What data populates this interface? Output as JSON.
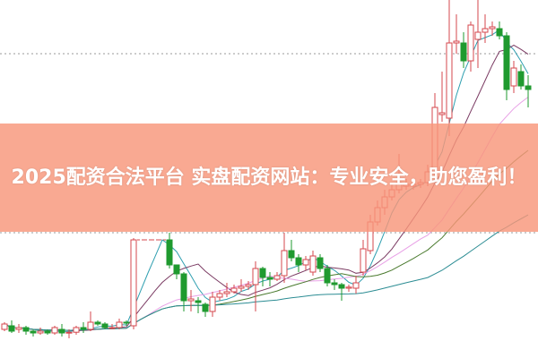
{
  "banner": {
    "text": "2025配资合法平台 实盘配资网站：专业安全，助您盈利！"
  },
  "colors": {
    "up": "#d6474d",
    "down": "#1f9a2f",
    "ma5": "#2f9fb0",
    "ma10": "#7b3b63",
    "ma20": "#e8a0e6",
    "ma30": "#4a7a2e",
    "ma60": "#2b8c93",
    "grid": "#9a9a9a",
    "banner": "#f8967a"
  },
  "chart_data": {
    "type": "candlestick",
    "title": "",
    "xlabel": "",
    "ylabel": "",
    "ylim": [
      0,
      100
    ],
    "grid": true,
    "gridlines": [
      35,
      85
    ],
    "moving_averages": [
      5,
      10,
      20,
      30,
      60
    ],
    "candles": [
      [
        8,
        9.5,
        10,
        7.5
      ],
      [
        9,
        7.5,
        10.5,
        7
      ],
      [
        8,
        8.5,
        9.5,
        7
      ],
      [
        8.5,
        7.5,
        9,
        6.5
      ],
      [
        7.5,
        7,
        8,
        6
      ],
      [
        7,
        7.5,
        8.5,
        6.5
      ],
      [
        7.5,
        7,
        8,
        6.5
      ],
      [
        7,
        8.5,
        9,
        6.5
      ],
      [
        8,
        7,
        9.5,
        6
      ],
      [
        7,
        7.2,
        8,
        5.5
      ],
      [
        7.2,
        8.5,
        9,
        6.5
      ],
      [
        8.5,
        8,
        10,
        7
      ],
      [
        8,
        10,
        13,
        7.5
      ],
      [
        10,
        9.5,
        10.5,
        9
      ],
      [
        9.5,
        8.5,
        10,
        8
      ],
      [
        8.5,
        8.5,
        9.5,
        8
      ],
      [
        8.5,
        10,
        11,
        8
      ],
      [
        10,
        9.8,
        10.5,
        9
      ],
      [
        9,
        33,
        33.5,
        8
      ],
      [
        33,
        33,
        33,
        33
      ],
      [
        33,
        33,
        33,
        33
      ],
      [
        33,
        33,
        33,
        33
      ],
      [
        33,
        33,
        33,
        33
      ],
      [
        33,
        26,
        35,
        25
      ],
      [
        26,
        23.5,
        25.5,
        22
      ],
      [
        23.5,
        16,
        24,
        13
      ],
      [
        16,
        16.5,
        19,
        13
      ],
      [
        16,
        15.5,
        17,
        12.5
      ],
      [
        15,
        13,
        15.5,
        11.5
      ],
      [
        13,
        17,
        18.5,
        11.5
      ],
      [
        17,
        18,
        19,
        16
      ],
      [
        18,
        18.5,
        21,
        17
      ],
      [
        18.5,
        19.5,
        20.5,
        18
      ],
      [
        19.5,
        20,
        22,
        18.5
      ],
      [
        20,
        20.5,
        21.5,
        19
      ],
      [
        20.5,
        25,
        27,
        13
      ],
      [
        25,
        22.5,
        25.5,
        20
      ],
      [
        22.5,
        22,
        24,
        20
      ],
      [
        22,
        23,
        24,
        21.5
      ],
      [
        23,
        30,
        35,
        21
      ],
      [
        30,
        28,
        33,
        27
      ],
      [
        28,
        26,
        29,
        24
      ],
      [
        26,
        27.5,
        28.5,
        24.5
      ],
      [
        24,
        28.5,
        30,
        23
      ],
      [
        28,
        25,
        29,
        24
      ],
      [
        25,
        21,
        26,
        20
      ],
      [
        21,
        20.5,
        22,
        19
      ],
      [
        20.5,
        19.5,
        21,
        16
      ],
      [
        19.5,
        19.8,
        20.5,
        18.5
      ],
      [
        19.5,
        21,
        23,
        18
      ],
      [
        24,
        30.5,
        33,
        23
      ],
      [
        30,
        38,
        40,
        29
      ],
      [
        38,
        42,
        44,
        37
      ],
      [
        42,
        45,
        47,
        40
      ],
      [
        45,
        47,
        49,
        44
      ],
      [
        47,
        49,
        57,
        46
      ],
      [
        48,
        48.5,
        50,
        47
      ],
      [
        48,
        48.5,
        49.5,
        47
      ],
      [
        48.5,
        49,
        50,
        47.5
      ],
      [
        49,
        52,
        54,
        48
      ],
      [
        52,
        70,
        74,
        51
      ],
      [
        68,
        68.5,
        80,
        66
      ],
      [
        67,
        88,
        100,
        62
      ],
      [
        88,
        88.5,
        96,
        85
      ],
      [
        88,
        83,
        91,
        81
      ],
      [
        83,
        93,
        94,
        80
      ],
      [
        89,
        91,
        100,
        81
      ],
      [
        91,
        92,
        96,
        88
      ],
      [
        92,
        92.5,
        94,
        90
      ],
      [
        92,
        90,
        94,
        89
      ],
      [
        90,
        75,
        91,
        72
      ],
      [
        76,
        81,
        83,
        74
      ],
      [
        80,
        76,
        82,
        75
      ],
      [
        76,
        75,
        79,
        70
      ]
    ]
  }
}
